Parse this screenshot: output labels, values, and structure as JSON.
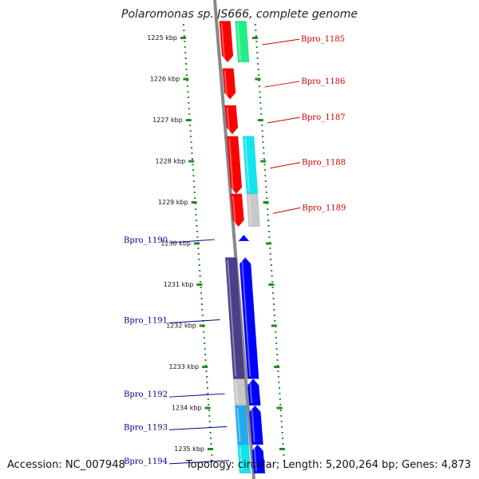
{
  "title": "Polaromonas sp. JS666, complete genome",
  "footer": {
    "accession": "Accession: NC_007948",
    "summary": "Topology: circular; Length: 5,200,264 bp; Genes: 4,873"
  },
  "colors": {
    "forward_label": "#cc0000",
    "reverse_label": "#00008b",
    "red_gene": "#ff0000",
    "blue_gene": "#0000ff",
    "navy_gene": "#4a3f8a",
    "green_gene": "#22ee88",
    "cyan_gene": "#11e5ee",
    "sky_gene": "#22aaee",
    "gray_gene": "#c8c8c8",
    "axis_dots": "#228b22",
    "backbone": "#888888"
  },
  "chart_data": {
    "type": "genome-map",
    "axis_unit": "kbp",
    "ticks": [
      {
        "kbp": 1225,
        "label": "1225 kbp"
      },
      {
        "kbp": 1226,
        "label": "1226 kbp"
      },
      {
        "kbp": 1227,
        "label": "1227 kbp"
      },
      {
        "kbp": 1228,
        "label": "1228 kbp"
      },
      {
        "kbp": 1229,
        "label": "1229 kbp"
      },
      {
        "kbp": 1230,
        "label": "1230 kbp"
      },
      {
        "kbp": 1231,
        "label": "1231 kbp"
      },
      {
        "kbp": 1232,
        "label": "1232 kbp"
      },
      {
        "kbp": 1233,
        "label": "1233 kbp"
      },
      {
        "kbp": 1234,
        "label": "1234 kbp"
      },
      {
        "kbp": 1235,
        "label": "1235 kbp"
      }
    ],
    "genes": [
      {
        "name": "Bpro_1185",
        "strand": "+",
        "start_kbp": 1224.6,
        "end_kbp": 1225.6
      },
      {
        "name": "Bpro_1186",
        "strand": "+",
        "start_kbp": 1225.75,
        "end_kbp": 1226.5
      },
      {
        "name": "Bpro_1187",
        "strand": "+",
        "start_kbp": 1226.65,
        "end_kbp": 1227.35
      },
      {
        "name": "Bpro_1188",
        "strand": "+",
        "start_kbp": 1227.4,
        "end_kbp": 1228.8
      },
      {
        "name": "Bpro_1189",
        "strand": "+",
        "start_kbp": 1228.8,
        "end_kbp": 1229.6
      },
      {
        "name": "Bpro_1190",
        "strand": "-",
        "start_kbp": 1229.8,
        "end_kbp": 1229.95
      },
      {
        "name": "Bpro_1191",
        "strand": "-",
        "start_kbp": 1230.35,
        "end_kbp": 1233.3
      },
      {
        "name": "Bpro_1192",
        "strand": "-",
        "start_kbp": 1233.3,
        "end_kbp": 1233.95
      },
      {
        "name": "Bpro_1193",
        "strand": "-",
        "start_kbp": 1233.95,
        "end_kbp": 1234.9
      },
      {
        "name": "Bpro_1194",
        "strand": "-",
        "start_kbp": 1234.9,
        "end_kbp": 1235.6
      }
    ],
    "features": [
      {
        "gene": "Bpro_1185",
        "track": "gene",
        "color": "red_gene"
      },
      {
        "gene": "Bpro_1185",
        "track": "cds",
        "color": "green_gene"
      },
      {
        "gene": "Bpro_1186",
        "track": "gene",
        "color": "red_gene"
      },
      {
        "gene": "Bpro_1187",
        "track": "gene",
        "color": "red_gene"
      },
      {
        "gene": "Bpro_1188",
        "track": "gene",
        "color": "red_gene"
      },
      {
        "gene": "Bpro_1188",
        "track": "cds",
        "color": "cyan_gene"
      },
      {
        "gene": "Bpro_1189",
        "track": "gene",
        "color": "red_gene"
      },
      {
        "gene": "Bpro_1189",
        "track": "cds",
        "color": "gray_gene"
      },
      {
        "gene": "Bpro_1190",
        "track": "gene",
        "color": "blue_gene"
      },
      {
        "gene": "Bpro_1191",
        "track": "gene",
        "color": "blue_gene"
      },
      {
        "gene": "Bpro_1191",
        "track": "cds",
        "color": "navy_gene"
      },
      {
        "gene": "Bpro_1192",
        "track": "gene",
        "color": "blue_gene"
      },
      {
        "gene": "Bpro_1192",
        "track": "cds",
        "color": "gray_gene"
      },
      {
        "gene": "Bpro_1193",
        "track": "gene",
        "color": "blue_gene"
      },
      {
        "gene": "Bpro_1193",
        "track": "cds",
        "color": "sky_gene"
      },
      {
        "gene": "Bpro_1194",
        "track": "gene",
        "color": "blue_gene"
      },
      {
        "gene": "Bpro_1194",
        "track": "cds",
        "color": "cyan_gene"
      }
    ]
  }
}
